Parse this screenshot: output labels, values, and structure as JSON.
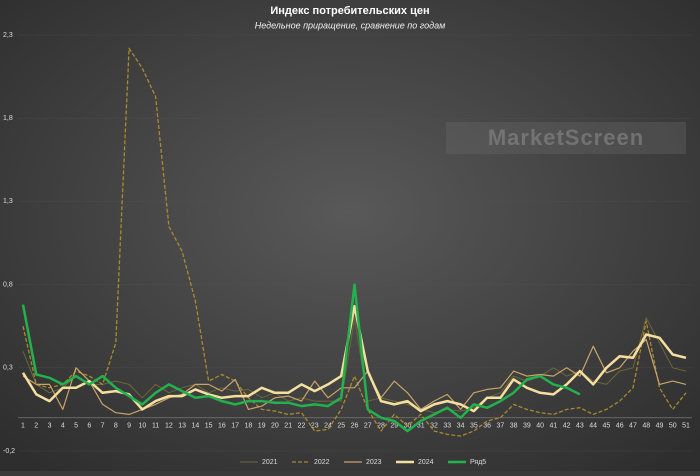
{
  "chart_data": {
    "type": "line",
    "title": "Индекс потребительских цен",
    "subtitle": "Недельное приращение, сравнение по годам",
    "watermark": "MarketScreen",
    "categories": [
      "1",
      "2",
      "3",
      "4",
      "5",
      "6",
      "7",
      "8",
      "9",
      "10",
      "11",
      "12",
      "13",
      "14",
      "15",
      "16",
      "17",
      "18",
      "19",
      "20",
      "21",
      "22",
      "23",
      "24",
      "25",
      "26",
      "27",
      "28",
      "29",
      "30",
      "31",
      "32",
      "33",
      "34",
      "35",
      "36",
      "37",
      "38",
      "39",
      "40",
      "41",
      "42",
      "43",
      "44",
      "45",
      "46",
      "47",
      "48",
      "49",
      "50",
      "51"
    ],
    "ylim": [
      -0.2,
      2.3
    ],
    "yticks": [
      {
        "value": -0.2,
        "label": "-0,2"
      },
      {
        "value": 0.3,
        "label": "0,3"
      },
      {
        "value": 0.8,
        "label": "0,8"
      },
      {
        "value": 1.3,
        "label": "1,3"
      },
      {
        "value": 1.8,
        "label": "1,8"
      },
      {
        "value": 2.3,
        "label": "2,3"
      }
    ],
    "grid": true,
    "legend": "bottom",
    "series": [
      {
        "name": "2021",
        "color": "#6b6838",
        "width": 1,
        "dash": false,
        "values": [
          0.4,
          0.2,
          0.15,
          0.18,
          0.25,
          0.2,
          0.2,
          0.22,
          0.2,
          0.12,
          0.2,
          0.15,
          0.18,
          0.2,
          0.15,
          0.18,
          0.16,
          0.17,
          0.12,
          0.15,
          0.1,
          0.12,
          0.1,
          0.1,
          0.1,
          0.6,
          0.1,
          0.12,
          0.1,
          0.08,
          0.05,
          0.03,
          0.05,
          0.04,
          0.06,
          0.12,
          0.15,
          0.25,
          0.22,
          0.25,
          0.3,
          0.25,
          0.28,
          0.22,
          0.2,
          0.28,
          0.3,
          0.6,
          0.45,
          0.3,
          0.28
        ]
      },
      {
        "name": "2022",
        "color": "#a98a2e",
        "width": 1.3,
        "dash": true,
        "values": [
          0.55,
          0.2,
          0.18,
          0.2,
          0.28,
          0.25,
          0.2,
          0.45,
          2.22,
          2.1,
          1.93,
          1.15,
          1.0,
          0.7,
          0.22,
          0.26,
          0.22,
          0.12,
          0.05,
          0.04,
          0.02,
          0.03,
          -0.08,
          -0.07,
          0.05,
          0.25,
          0.05,
          -0.08,
          0.02,
          -0.05,
          0.02,
          -0.08,
          -0.1,
          -0.11,
          -0.08,
          -0.02,
          0.0,
          0.08,
          0.05,
          0.03,
          0.02,
          0.05,
          0.06,
          0.02,
          0.05,
          0.1,
          0.18,
          0.58,
          0.18,
          0.05,
          0.15
        ]
      },
      {
        "name": "2023",
        "color": "#c9a46a",
        "width": 1.2,
        "dash": false,
        "values": [
          0.25,
          0.2,
          0.2,
          0.05,
          0.3,
          0.22,
          0.08,
          0.03,
          0.02,
          0.05,
          0.08,
          0.12,
          0.14,
          0.2,
          0.2,
          0.16,
          0.23,
          0.05,
          0.07,
          0.12,
          0.13,
          0.1,
          0.22,
          0.12,
          0.18,
          0.18,
          0.28,
          0.12,
          0.22,
          0.15,
          0.05,
          0.1,
          0.14,
          0.05,
          0.15,
          0.17,
          0.18,
          0.28,
          0.25,
          0.26,
          0.25,
          0.3,
          0.25,
          0.43,
          0.27,
          0.3,
          0.4,
          0.47,
          0.2,
          0.22,
          0.2
        ]
      },
      {
        "name": "2024",
        "color": "#f5dfa0",
        "width": 2.5,
        "dash": false,
        "values": [
          0.27,
          0.14,
          0.1,
          0.18,
          0.18,
          0.22,
          0.15,
          0.16,
          0.14,
          0.05,
          0.1,
          0.13,
          0.13,
          0.17,
          0.14,
          0.12,
          0.13,
          0.13,
          0.18,
          0.15,
          0.15,
          0.2,
          0.16,
          0.2,
          0.25,
          0.67,
          0.28,
          0.1,
          0.08,
          0.1,
          0.04,
          0.08,
          0.1,
          0.08,
          0.04,
          0.12,
          0.12,
          0.23,
          0.18,
          0.15,
          0.14,
          0.2,
          0.28,
          0.2,
          0.3,
          0.37,
          0.36,
          0.5,
          0.48,
          0.38,
          0.36
        ]
      },
      {
        "name": "Ряд5",
        "color": "#22b14c",
        "width": 2.5,
        "dash": false,
        "values": [
          0.68,
          0.26,
          0.24,
          0.2,
          0.25,
          0.2,
          0.25,
          0.18,
          0.13,
          0.08,
          0.15,
          0.2,
          0.16,
          0.12,
          0.13,
          0.1,
          0.08,
          0.1,
          0.1,
          0.09,
          0.09,
          0.07,
          0.08,
          0.07,
          0.12,
          0.8,
          0.05,
          0.0,
          -0.02,
          -0.08,
          -0.02,
          0.02,
          0.06,
          0.0,
          0.08,
          0.06,
          0.1,
          0.15,
          0.23,
          0.25,
          0.2,
          0.18,
          0.14,
          null,
          null,
          null,
          null,
          null,
          null,
          null,
          null
        ]
      }
    ]
  }
}
